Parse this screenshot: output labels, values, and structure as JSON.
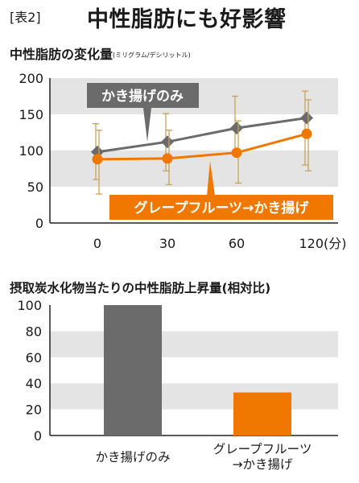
{
  "header": {
    "figure_label": "[表2]",
    "title": "中性脂肪にも好影響"
  },
  "colors": {
    "gray_series": "#6b6b6b",
    "orange_series": "#f07800",
    "band": "#e4e4e4",
    "error_bar": "#c8a25a"
  },
  "chart_data": [
    {
      "type": "line",
      "title": "中性脂肪の変化量",
      "unit_label": "(ミリグラム/デシリットル)",
      "x": [
        0,
        30,
        60,
        120
      ],
      "x_tick_labels": [
        "0",
        "30",
        "60",
        "120(分)"
      ],
      "ylim": [
        0,
        200
      ],
      "y_ticks": [
        0,
        50,
        100,
        150,
        200
      ],
      "grid": "alternating horizontal bands",
      "series": [
        {
          "name": "かき揚げのみ",
          "values": [
            98,
            112,
            131,
            145
          ],
          "err_low": [
            60,
            72,
            95,
            80
          ],
          "err_high": [
            137,
            151,
            175,
            182
          ],
          "color": "#6b6b6b"
        },
        {
          "name": "グレープフルーツ→かき揚げ",
          "values": [
            88,
            89,
            97,
            123
          ],
          "err_low": [
            40,
            53,
            55,
            72
          ],
          "err_high": [
            128,
            128,
            141,
            170
          ],
          "color": "#f07800"
        }
      ]
    },
    {
      "type": "bar",
      "title": "摂取炭水化物当たりの中性脂肪上昇量(相対比)",
      "categories": [
        "かき揚げのみ",
        "グレープフルーツ→かき揚げ"
      ],
      "category_lines": [
        [
          "かき揚げのみ"
        ],
        [
          "グレープフルーツ",
          "→かき揚げ"
        ]
      ],
      "values": [
        100,
        33
      ],
      "colors": [
        "#6b6b6b",
        "#f07800"
      ],
      "ylim": [
        0,
        100
      ],
      "y_ticks": [
        0,
        20,
        40,
        60,
        80,
        100
      ],
      "grid": "alternating horizontal bands"
    }
  ]
}
